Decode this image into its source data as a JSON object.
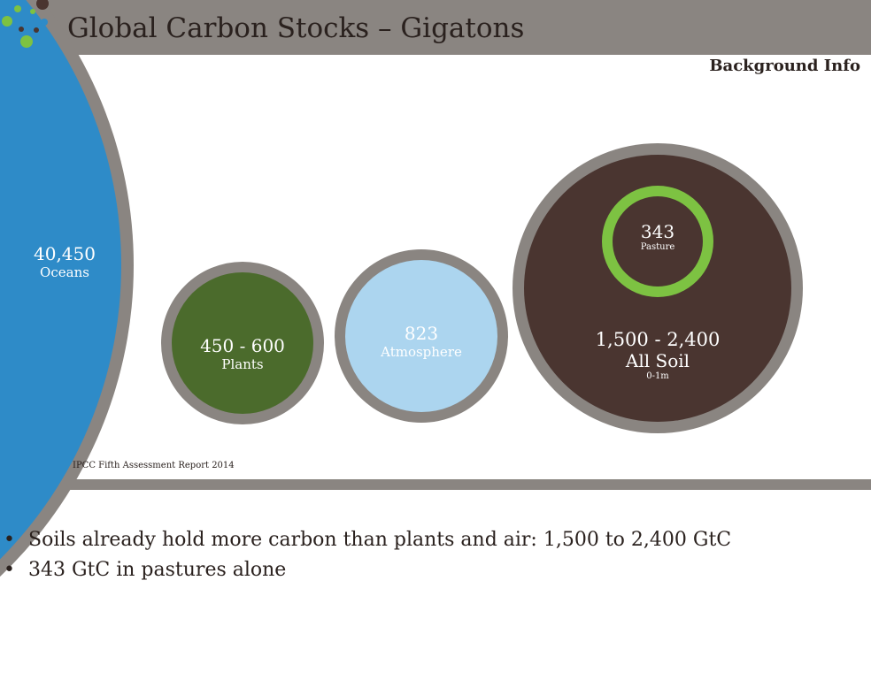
{
  "header": {
    "title": "Global Carbon Stocks – Gigatons",
    "subtitle": "Background Info"
  },
  "bubbles": [
    {
      "value": "40,450",
      "label": "Oceans",
      "color": "#2e8bc8"
    },
    {
      "value": "450 - 600",
      "label": "Plants",
      "color": "#4b6b2c"
    },
    {
      "value": "823",
      "label": "Atmosphere",
      "color": "#acd5ef"
    },
    {
      "value": "1,500 - 2,400",
      "label": "All Soil",
      "sublabel": "0-1m",
      "color": "#4a3530"
    },
    {
      "value": "343",
      "label": "Pasture",
      "color": "#4a3530",
      "ring_color": "#7dc242"
    }
  ],
  "source": "IPCC Fifth Assessment Report 2014",
  "bullets": [
    "Soils already hold more carbon than plants and air: 1,500 to 2,400 GtC",
    "343 GtC in pastures alone"
  ],
  "colors": {
    "frame": "#8a8581",
    "text": "#2a211e"
  }
}
